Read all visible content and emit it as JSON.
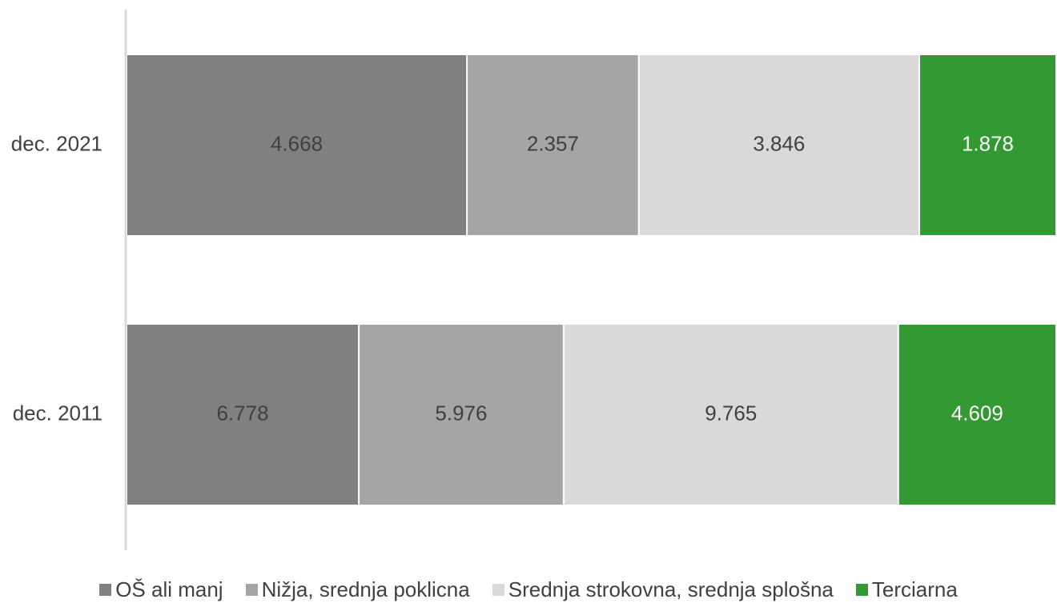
{
  "chart_data": {
    "type": "bar",
    "orientation": "horizontal",
    "stacked": "percent",
    "categories": [
      "dec. 2021",
      "dec. 2011"
    ],
    "series": [
      {
        "name": "OŠ ali manj",
        "color": "#808080",
        "values": [
          4668,
          6778
        ],
        "labels": [
          "4.668",
          "6.778"
        ]
      },
      {
        "name": "Nižja, srednja poklicna",
        "color": "#a5a5a5",
        "values": [
          2357,
          5976
        ],
        "labels": [
          "2.357",
          "5.976"
        ]
      },
      {
        "name": "Srednja strokovna, srednja splošna",
        "color": "#d9d9d9",
        "values": [
          3846,
          9765
        ],
        "labels": [
          "3.846",
          "9.765"
        ]
      },
      {
        "name": "Terciarna",
        "color": "#339933",
        "values": [
          1878,
          4609
        ],
        "labels": [
          "1.878",
          "4.609"
        ]
      }
    ],
    "label_colors": [
      "#404040",
      "#404040",
      "#404040",
      "#ffffff"
    ],
    "grid": false,
    "legend_position": "bottom"
  }
}
